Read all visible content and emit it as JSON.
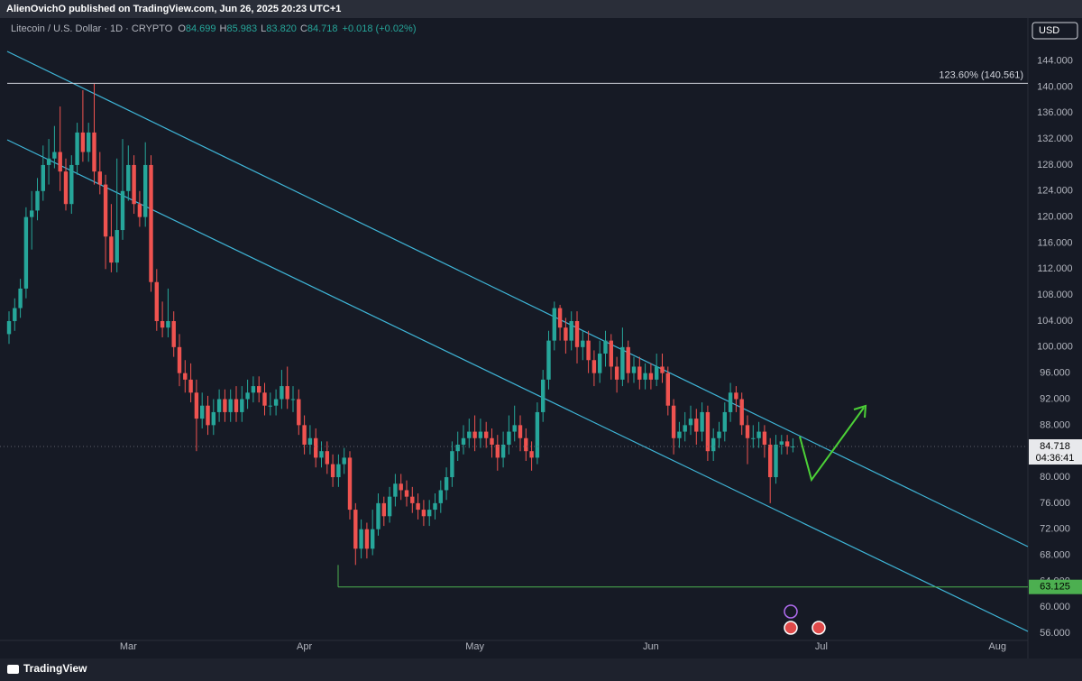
{
  "header": {
    "published": "AlienOvichO published on TradingView.com, Jun 26, 2025 20:23 UTC+1",
    "currency_button": "USD",
    "footer_brand": "TradingView"
  },
  "chart_data": {
    "type": "candlestick",
    "symbol": "Litecoin / U.S. Dollar · 1D · CRYPTO",
    "ohlc_legend": [
      {
        "label": "O",
        "value": "84.699"
      },
      {
        "label": "H",
        "value": "85.983"
      },
      {
        "label": "L",
        "value": "83.820"
      },
      {
        "label": "C",
        "value": "84.718"
      }
    ],
    "change": "+0.018 (+0.02%)",
    "up_color": "#26a69a",
    "down_color": "#ef5350",
    "grid": false,
    "categories": [
      null,
      null,
      null,
      null,
      null,
      null,
      null,
      null,
      null,
      null,
      null,
      null,
      null,
      null,
      null,
      null,
      null,
      null,
      null,
      null,
      null,
      "Mar",
      null,
      null,
      null,
      null,
      null,
      null,
      null,
      null,
      null,
      null,
      null,
      null,
      null,
      null,
      null,
      null,
      null,
      null,
      null,
      null,
      null,
      null,
      null,
      null,
      null,
      null,
      null,
      null,
      null,
      null,
      "Apr",
      null,
      null,
      null,
      null,
      null,
      null,
      null,
      null,
      null,
      null,
      null,
      null,
      null,
      null,
      null,
      null,
      null,
      null,
      null,
      null,
      null,
      null,
      null,
      null,
      null,
      null,
      null,
      null,
      null,
      "May",
      null,
      null,
      null,
      null,
      null,
      null,
      null,
      null,
      null,
      null,
      null,
      null,
      null,
      null,
      null,
      null,
      null,
      null,
      null,
      null,
      null,
      null,
      null,
      null,
      null,
      null,
      null,
      null,
      null,
      null,
      "Jun",
      null,
      null,
      null,
      null,
      null,
      null,
      null,
      null,
      null,
      null,
      null,
      null,
      null,
      null,
      null,
      null,
      null,
      null,
      null,
      null,
      null,
      null,
      null,
      null,
      null,
      null,
      null,
      null,
      null,
      "Jul",
      null,
      null,
      null,
      null,
      null,
      null,
      null,
      null,
      null,
      null,
      null,
      null,
      null,
      null,
      null,
      null,
      null,
      null,
      null,
      null,
      null,
      null,
      null,
      null,
      null,
      null,
      null,
      null,
      null,
      null,
      "Aug",
      null,
      null,
      null,
      null,
      null,
      null
    ],
    "open": [
      102,
      104,
      106,
      109,
      120,
      121,
      124,
      128,
      129,
      130,
      127,
      122,
      128,
      133,
      130,
      133,
      127,
      125,
      117,
      113,
      118,
      124,
      128,
      122,
      120,
      128,
      110,
      104,
      103,
      104,
      100,
      96,
      95,
      93,
      89,
      91,
      88,
      90,
      92,
      90,
      92,
      90,
      92,
      93,
      94,
      93,
      91,
      91,
      92,
      94,
      92,
      92,
      88,
      85,
      86,
      83,
      84,
      82,
      80,
      82,
      83,
      75,
      69,
      72,
      69,
      72,
      76,
      74,
      77,
      79,
      78,
      77,
      76,
      75,
      74,
      75,
      76,
      78,
      80,
      84,
      85,
      86,
      87,
      86,
      87,
      86,
      85,
      83,
      85,
      87,
      88,
      86,
      84,
      83,
      90,
      95,
      101,
      106,
      103,
      101,
      104,
      100,
      101,
      98,
      96,
      99,
      101,
      97,
      95,
      100,
      96,
      97,
      95,
      96,
      95,
      97,
      96,
      91,
      86,
      87,
      88,
      89,
      87,
      90,
      84,
      86,
      87,
      90,
      93,
      92,
      88,
      86,
      86,
      87,
      85,
      80,
      85,
      85.5,
      84.699,
      null,
      null,
      null,
      null,
      null,
      null,
      null,
      null,
      null,
      null,
      null,
      null,
      null,
      null,
      null,
      null,
      null,
      null,
      null,
      null,
      null,
      null,
      null,
      null,
      null,
      null,
      null,
      null,
      null,
      null,
      null,
      null,
      null,
      null,
      null,
      null,
      null,
      null,
      null,
      null,
      null,
      null
    ],
    "high": [
      105.5,
      107.5,
      110.5,
      121.5,
      124,
      126,
      131,
      132,
      134,
      137,
      129,
      129.5,
      134.5,
      139.5,
      134.5,
      140.5,
      130,
      126.5,
      122,
      129,
      132,
      131,
      129.5,
      124,
      131.5,
      129.5,
      112,
      107,
      109,
      105.5,
      102,
      98,
      97.5,
      95,
      93,
      92.5,
      92,
      93.5,
      93.5,
      93.5,
      94,
      94,
      95,
      95.5,
      95.5,
      94.5,
      93,
      93.5,
      96.5,
      97,
      94,
      93.5,
      89.5,
      88,
      87.5,
      85.5,
      85.5,
      83.5,
      83.5,
      84.5,
      84,
      76,
      73.5,
      73,
      75,
      77.5,
      77,
      78.5,
      80.5,
      80.5,
      79.5,
      78.5,
      77.5,
      76.5,
      76.5,
      77.5,
      79.5,
      81.5,
      85.5,
      87,
      88,
      89,
      89.5,
      89,
      88.5,
      87.5,
      86.5,
      87,
      89.5,
      91,
      89.5,
      87.5,
      85.5,
      91.5,
      96.5,
      102.5,
      107,
      106.5,
      104.5,
      105.5,
      105.5,
      102.5,
      102.5,
      99.5,
      101,
      102.5,
      102,
      98.5,
      103,
      101,
      98.5,
      98.5,
      97.5,
      97.5,
      99,
      99,
      97,
      92,
      88.5,
      90,
      91,
      90.5,
      91.5,
      91,
      87.5,
      88.5,
      91.5,
      94.5,
      94,
      93,
      89.5,
      88,
      88.5,
      88,
      86,
      86.5,
      86.5,
      86.5,
      85.983,
      null,
      null,
      null,
      null,
      null,
      null,
      null,
      null,
      null,
      null,
      null,
      null,
      null,
      null,
      null,
      null,
      null,
      null,
      null,
      null,
      null,
      null,
      null,
      null,
      null,
      null,
      null,
      null,
      null,
      null,
      null,
      null,
      null,
      null,
      null,
      null,
      null,
      null,
      null,
      null,
      null,
      null
    ],
    "low": [
      100.5,
      102.5,
      104.5,
      107.5,
      115,
      119.5,
      122.5,
      125,
      127.5,
      124,
      121,
      120.5,
      126.5,
      128.5,
      128.5,
      125,
      123.5,
      112,
      111.5,
      111.5,
      116.5,
      122.5,
      120.5,
      118.5,
      118.5,
      108.5,
      102.5,
      101.5,
      101.5,
      98.5,
      94,
      93,
      91.5,
      84,
      87.5,
      86.5,
      86.5,
      88.5,
      88.5,
      88.5,
      88.5,
      88.5,
      90.5,
      91.5,
      91.5,
      89.5,
      89.5,
      89.5,
      90.5,
      90.5,
      90,
      86.5,
      83.5,
      83.5,
      81.5,
      81.5,
      80.5,
      78.5,
      78.5,
      80.5,
      73.5,
      66.5,
      67.5,
      67.5,
      68,
      71,
      72.5,
      73,
      75.5,
      76.5,
      75.5,
      74.5,
      73.5,
      72.5,
      72.5,
      73.5,
      74.5,
      76.5,
      78.5,
      82.5,
      83.5,
      84.5,
      84,
      84.5,
      84.5,
      83,
      81,
      81.5,
      83.5,
      85.5,
      84,
      82.5,
      81,
      82,
      88.5,
      93.5,
      99.5,
      101,
      99,
      99.5,
      97.5,
      98,
      96,
      94,
      94.5,
      97,
      95,
      93,
      94,
      94.5,
      94.5,
      93.5,
      93.5,
      93.5,
      94,
      94.5,
      89.5,
      83.5,
      84.5,
      85.5,
      86.5,
      85,
      85.5,
      82.5,
      82.5,
      84.5,
      85.5,
      88.5,
      90,
      86.5,
      82,
      84.5,
      84.5,
      83,
      76,
      79,
      83.5,
      83.5,
      83.82,
      null,
      null,
      null,
      null,
      null,
      null,
      null,
      null,
      null,
      null,
      null,
      null,
      null,
      null,
      null,
      null,
      null,
      null,
      null,
      null,
      null,
      null,
      null,
      null,
      null,
      null,
      null,
      null,
      null,
      null,
      null,
      null,
      null,
      null,
      null,
      null,
      null,
      null,
      null,
      null,
      null,
      null
    ],
    "close": [
      104,
      106,
      109,
      120,
      121,
      124,
      128,
      129,
      130,
      127,
      122,
      128,
      133,
      130,
      133,
      127,
      125,
      117,
      113,
      118,
      124,
      128,
      122,
      120,
      128,
      110,
      104,
      103,
      104,
      100,
      96,
      95,
      93,
      89,
      91,
      88,
      90,
      92,
      90,
      92,
      90,
      92,
      93,
      94,
      93,
      91,
      91,
      92,
      94,
      92,
      92,
      88,
      85,
      86,
      83,
      84,
      82,
      80,
      82,
      83,
      75,
      69,
      72,
      69,
      72,
      76,
      74,
      77,
      79,
      78,
      77,
      76,
      75,
      74,
      75,
      76,
      78,
      80,
      84,
      85,
      86,
      87,
      86,
      87,
      86,
      85,
      83,
      85,
      87,
      88,
      86,
      84,
      83,
      90,
      95,
      101,
      106,
      103,
      101,
      104,
      100,
      101,
      98,
      96,
      99,
      101,
      97,
      95,
      100,
      96,
      97,
      95,
      96,
      95,
      97,
      96,
      91,
      86,
      87,
      88,
      89,
      87,
      90,
      84,
      86,
      87,
      90,
      93,
      92,
      88,
      86,
      86,
      87,
      85,
      80,
      85,
      85.5,
      84.699,
      84.718,
      null,
      null,
      null,
      null,
      null,
      null,
      null,
      null,
      null,
      null,
      null,
      null,
      null,
      null,
      null,
      null,
      null,
      null,
      null,
      null,
      null,
      null,
      null,
      null,
      null,
      null,
      null,
      null,
      null,
      null,
      null,
      null,
      null,
      null,
      null,
      null,
      null,
      null,
      null,
      null,
      null,
      null
    ],
    "ylim": [
      54.9,
      150.6
    ],
    "yticks": [
      {
        "value": 144,
        "label": "144.000"
      },
      {
        "value": 140,
        "label": "140.000"
      },
      {
        "value": 136,
        "label": "136.000"
      },
      {
        "value": 132,
        "label": "132.000"
      },
      {
        "value": 128,
        "label": "128.000"
      },
      {
        "value": 124,
        "label": "124.000"
      },
      {
        "value": 120,
        "label": "120.000"
      },
      {
        "value": 116,
        "label": "116.000"
      },
      {
        "value": 112,
        "label": "112.000"
      },
      {
        "value": 108,
        "label": "108.000"
      },
      {
        "value": 104,
        "label": "104.000"
      },
      {
        "value": 100,
        "label": "100.000"
      },
      {
        "value": 96,
        "label": "96.000"
      },
      {
        "value": 92,
        "label": "92.000"
      },
      {
        "value": 88,
        "label": "88.000"
      },
      {
        "value": 80,
        "label": "80.000"
      },
      {
        "value": 76,
        "label": "76.000"
      },
      {
        "value": 72,
        "label": "72.000"
      },
      {
        "value": 68,
        "label": "68.000"
      },
      {
        "value": 64,
        "label": "64.000"
      },
      {
        "value": 60,
        "label": "60.000"
      },
      {
        "value": 56,
        "label": "56.000"
      }
    ],
    "fib_level": {
      "value": 140.561,
      "label": "123.60% (140.561)"
    },
    "support_level": {
      "value": 63.125
    },
    "last_price": {
      "value": 84.718,
      "countdown": "04:36:41"
    }
  }
}
